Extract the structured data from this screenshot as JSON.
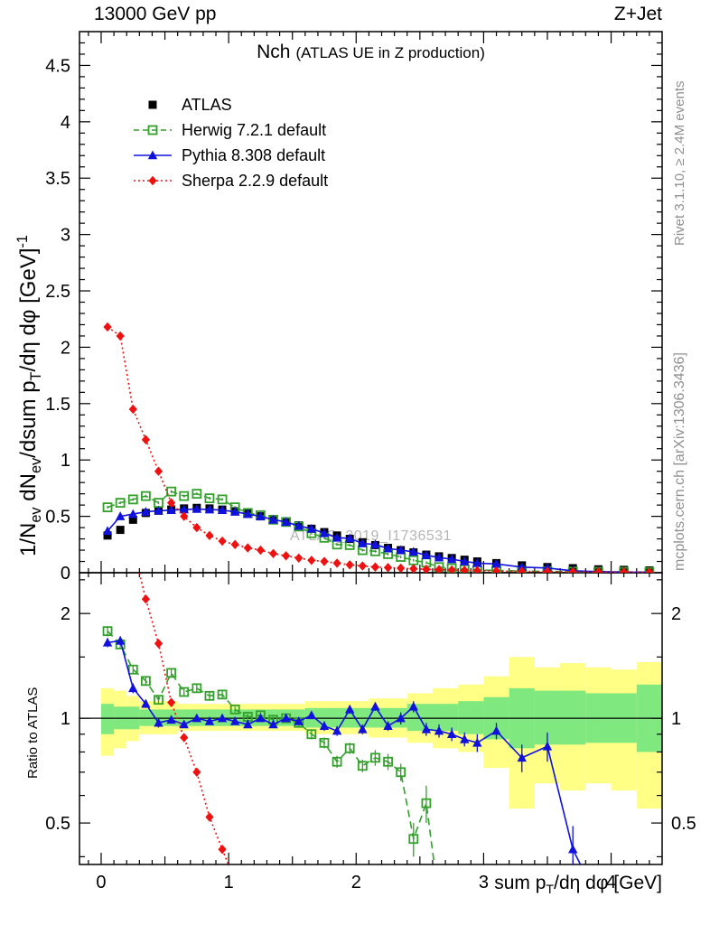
{
  "header": {
    "left": "13000 GeV pp",
    "right": "Z+Jet"
  },
  "title": {
    "main": "Nch",
    "sub": "(ATLAS UE in Z production)"
  },
  "watermark": "ATLAS_2019_I1736531",
  "side_notes": {
    "top": "Rivet 3.1.10, ≥ 2.4M events",
    "bottom": "mcplots.cern.ch [arXiv:1306.3436]"
  },
  "axes": {
    "xlabel_rich": "sum p_[T]/dη dφ [GeV]",
    "ylabel_main_rich": "1/N_[ev] dN_[ev]/dsum p_[T]/dη dφ  [GeV]^[-1]",
    "ylabel_ratio": "Ratio to ATLAS",
    "x_tick_labels": [
      0,
      1,
      2,
      3,
      4
    ],
    "main_y_tick_labels": [
      0,
      0.5,
      1,
      1.5,
      2,
      2.5,
      3,
      3.5,
      4,
      4.5
    ],
    "ratio_y_tick_labels": [
      0.5,
      1,
      2
    ]
  },
  "legend": [
    {
      "label": "ATLAS",
      "color": "#000000",
      "marker": "square",
      "line": "none"
    },
    {
      "label": "Herwig 7.2.1 default",
      "color": "#33a02c",
      "marker": "square-open",
      "line": "dashed"
    },
    {
      "label": "Pythia 8.308 default",
      "color": "#1111dd",
      "marker": "triangle",
      "line": "solid"
    },
    {
      "label": "Sherpa 2.2.9 default",
      "color": "#ee1111",
      "marker": "diamond",
      "line": "dotted"
    }
  ],
  "chart_data": [
    {
      "type": "scatter",
      "panel": "main",
      "title": "Nch (ATLAS UE in Z production)",
      "xlabel": "sum pT/dη dφ [GeV]",
      "ylabel": "1/Nev dNev/dsum pT/dη dφ [GeV]^-1",
      "xlim": [
        -0.17,
        4.4
      ],
      "ylim": [
        0,
        4.8
      ],
      "grid": false,
      "legend_position": "top-left",
      "x": [
        0.05,
        0.15,
        0.25,
        0.35,
        0.45,
        0.55,
        0.65,
        0.75,
        0.85,
        0.95,
        1.05,
        1.15,
        1.25,
        1.35,
        1.45,
        1.55,
        1.65,
        1.75,
        1.85,
        1.95,
        2.05,
        2.15,
        2.25,
        2.35,
        2.45,
        2.55,
        2.65,
        2.75,
        2.85,
        2.95,
        3.1,
        3.3,
        3.5,
        3.7,
        3.9,
        4.1,
        4.3
      ],
      "series": [
        {
          "name": "ATLAS",
          "marker": "square",
          "line": "none",
          "color": "#000000",
          "err": 0.012,
          "values": [
            0.33,
            0.38,
            0.47,
            0.53,
            0.55,
            0.56,
            0.57,
            0.575,
            0.57,
            0.56,
            0.545,
            0.525,
            0.5,
            0.475,
            0.45,
            0.42,
            0.39,
            0.36,
            0.33,
            0.3,
            0.27,
            0.245,
            0.22,
            0.2,
            0.18,
            0.16,
            0.145,
            0.13,
            0.115,
            0.1,
            0.085,
            0.065,
            0.05,
            0.04,
            0.03,
            0.025,
            0.02
          ]
        },
        {
          "name": "Herwig 7.2.1 default",
          "marker": "square-open",
          "line": "dashed",
          "color": "#33a02c",
          "err": 0.012,
          "values": [
            0.58,
            0.62,
            0.65,
            0.68,
            0.62,
            0.72,
            0.68,
            0.7,
            0.66,
            0.65,
            0.58,
            0.53,
            0.51,
            0.47,
            0.45,
            0.41,
            0.35,
            0.31,
            0.25,
            0.245,
            0.2,
            0.19,
            0.165,
            0.14,
            0.11,
            0.09,
            0.05,
            0.04,
            0.03,
            0.025,
            0.02,
            0.015,
            0.012,
            0.01,
            0.008,
            0.007,
            0.006
          ]
        },
        {
          "name": "Pythia 8.308 default",
          "marker": "triangle",
          "line": "solid",
          "color": "#1111dd",
          "err": 0.012,
          "values": [
            0.37,
            0.5,
            0.52,
            0.54,
            0.55,
            0.555,
            0.56,
            0.565,
            0.56,
            0.555,
            0.54,
            0.52,
            0.5,
            0.47,
            0.45,
            0.415,
            0.39,
            0.35,
            0.31,
            0.305,
            0.26,
            0.25,
            0.215,
            0.2,
            0.185,
            0.155,
            0.135,
            0.12,
            0.1,
            0.085,
            0.078,
            0.05,
            0.042,
            0.017,
            0.01,
            0.006,
            0.004
          ]
        },
        {
          "name": "Sherpa 2.2.9 default",
          "marker": "diamond",
          "line": "dotted",
          "color": "#ee1111",
          "err": 0.012,
          "values": [
            2.18,
            2.1,
            1.45,
            1.18,
            0.9,
            0.62,
            0.5,
            0.4,
            0.33,
            0.28,
            0.25,
            0.22,
            0.2,
            0.17,
            0.15,
            0.13,
            0.11,
            0.1,
            0.085,
            0.07,
            0.06,
            0.05,
            0.045,
            0.04,
            0.035,
            0.03,
            0.027,
            0.024,
            0.021,
            0.018,
            0.015,
            0.012,
            0.01,
            0.008,
            0.007,
            0.006,
            0.005
          ]
        }
      ]
    },
    {
      "type": "line",
      "panel": "ratio",
      "ylabel": "Ratio to ATLAS",
      "yscale": "log",
      "ylim": [
        0.38,
        2.62
      ],
      "baseline": 1,
      "x": [
        0.05,
        0.15,
        0.25,
        0.35,
        0.45,
        0.55,
        0.65,
        0.75,
        0.85,
        0.95,
        1.05,
        1.15,
        1.25,
        1.35,
        1.45,
        1.55,
        1.65,
        1.75,
        1.85,
        1.95,
        2.05,
        2.15,
        2.25,
        2.35,
        2.45,
        2.55,
        2.65,
        2.75,
        2.85,
        2.95,
        3.1,
        3.3,
        3.5,
        3.7,
        3.9,
        4.1,
        4.3
      ],
      "series": [
        {
          "name": "Herwig 7.2.1 default",
          "marker": "square-open",
          "line": "dashed",
          "color": "#33a02c",
          "values": [
            1.78,
            1.63,
            1.38,
            1.28,
            1.13,
            1.35,
            1.19,
            1.22,
            1.16,
            1.17,
            1.06,
            1.01,
            1.02,
            0.99,
            1.0,
            0.97,
            0.9,
            0.85,
            0.75,
            0.82,
            0.73,
            0.77,
            0.75,
            0.7,
            0.45,
            0.57,
            0.3,
            null,
            null,
            null,
            null,
            null,
            null,
            null,
            null,
            null,
            null
          ],
          "errors": [
            0.06,
            0.05,
            0.04,
            0.04,
            0.03,
            0.04,
            0.03,
            0.03,
            0.03,
            0.03,
            0.02,
            0.02,
            0.02,
            0.02,
            0.02,
            0.02,
            0.03,
            0.03,
            0.03,
            0.03,
            0.03,
            0.04,
            0.04,
            0.04,
            0.05,
            0.07,
            0.06,
            null,
            null,
            null,
            null,
            null,
            null,
            null,
            null,
            null,
            null
          ]
        },
        {
          "name": "Pythia 8.308 default",
          "marker": "triangle",
          "line": "solid",
          "color": "#1111dd",
          "values": [
            1.65,
            1.67,
            1.22,
            1.1,
            0.97,
            0.99,
            0.96,
            1.0,
            0.98,
            1.0,
            0.98,
            0.96,
            1.0,
            0.96,
            1.0,
            0.98,
            1.02,
            0.95,
            0.92,
            1.06,
            0.93,
            1.08,
            0.95,
            1.0,
            1.08,
            0.93,
            0.92,
            0.9,
            0.87,
            0.85,
            0.92,
            0.77,
            0.83,
            0.42,
            0.3,
            null,
            null
          ],
          "errors": [
            0.05,
            0.05,
            0.04,
            0.03,
            0.03,
            0.02,
            0.02,
            0.02,
            0.02,
            0.02,
            0.02,
            0.02,
            0.02,
            0.02,
            0.02,
            0.02,
            0.02,
            0.03,
            0.03,
            0.03,
            0.03,
            0.03,
            0.03,
            0.04,
            0.04,
            0.04,
            0.04,
            0.04,
            0.04,
            0.05,
            0.05,
            0.07,
            0.08,
            0.07,
            0.05,
            null,
            null
          ]
        },
        {
          "name": "Sherpa 2.2.9 default",
          "marker": "diamond",
          "line": "dotted",
          "color": "#ee1111",
          "values": [
            6.6,
            5.5,
            3.1,
            2.2,
            1.64,
            1.11,
            0.88,
            0.7,
            0.52,
            0.42,
            0.34,
            0.27,
            0.21,
            null,
            null,
            null,
            null,
            null,
            null,
            null,
            null,
            null,
            null,
            null,
            null,
            null,
            null,
            null,
            null,
            null,
            null,
            null,
            null,
            null,
            null,
            null,
            null
          ],
          "errors": null
        }
      ],
      "bands": {
        "outer_color": "#ffff85",
        "inner_color": "#7fe87f",
        "outer": [
          [
            0.0,
            0.1,
            0.78,
            1.22
          ],
          [
            0.1,
            0.2,
            0.82,
            1.2
          ],
          [
            0.2,
            0.3,
            0.86,
            1.16
          ],
          [
            0.3,
            0.6,
            0.9,
            1.12
          ],
          [
            0.6,
            1.1,
            0.92,
            1.1
          ],
          [
            1.1,
            1.6,
            0.92,
            1.1
          ],
          [
            1.6,
            2.1,
            0.9,
            1.12
          ],
          [
            2.1,
            2.4,
            0.88,
            1.14
          ],
          [
            2.4,
            2.6,
            0.85,
            1.18
          ],
          [
            2.6,
            2.8,
            0.82,
            1.22
          ],
          [
            2.8,
            3.0,
            0.8,
            1.25
          ],
          [
            3.0,
            3.2,
            0.72,
            1.32
          ],
          [
            3.2,
            3.4,
            0.55,
            1.5
          ],
          [
            3.4,
            3.6,
            0.65,
            1.4
          ],
          [
            3.6,
            3.8,
            0.62,
            1.44
          ],
          [
            3.8,
            4.0,
            0.65,
            1.4
          ],
          [
            4.0,
            4.2,
            0.62,
            1.38
          ],
          [
            4.2,
            4.4,
            0.55,
            1.45
          ]
        ],
        "inner": [
          [
            0.0,
            0.1,
            0.9,
            1.1
          ],
          [
            0.1,
            0.3,
            0.93,
            1.08
          ],
          [
            0.3,
            1.6,
            0.95,
            1.06
          ],
          [
            1.6,
            2.4,
            0.94,
            1.07
          ],
          [
            2.4,
            2.8,
            0.92,
            1.1
          ],
          [
            2.8,
            3.0,
            0.9,
            1.12
          ],
          [
            3.0,
            3.2,
            0.87,
            1.15
          ],
          [
            3.2,
            3.4,
            0.82,
            1.22
          ],
          [
            3.4,
            3.8,
            0.84,
            1.2
          ],
          [
            3.8,
            4.2,
            0.85,
            1.18
          ],
          [
            4.2,
            4.4,
            0.8,
            1.25
          ]
        ]
      }
    }
  ]
}
